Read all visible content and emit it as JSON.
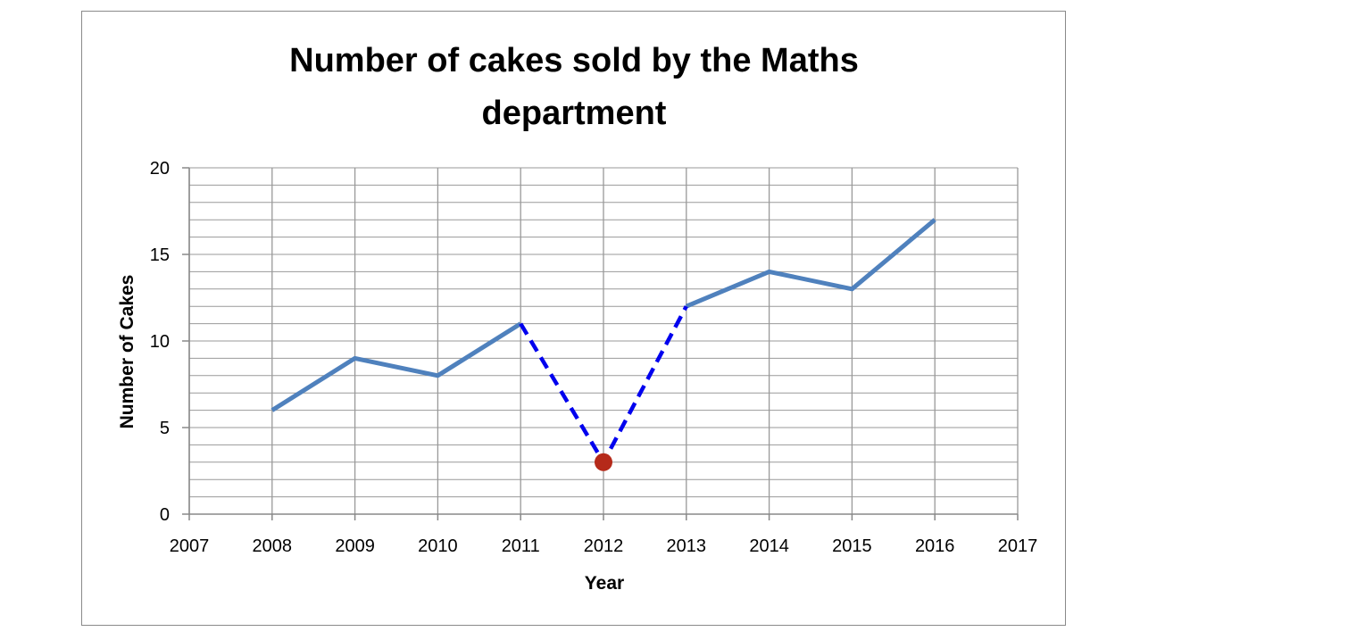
{
  "chart_data": {
    "type": "line",
    "title_lines": [
      "Number of cakes sold by the Maths",
      "department"
    ],
    "xlabel": "Year",
    "ylabel": "Number of Cakes",
    "xlim": [
      2007,
      2017
    ],
    "ylim": [
      0,
      20
    ],
    "x_ticks": [
      "2007",
      "2008",
      "2009",
      "2010",
      "2011",
      "2012",
      "2013",
      "2014",
      "2015",
      "2016",
      "2017"
    ],
    "y_ticks": [
      "0",
      "5",
      "10",
      "15",
      "20"
    ],
    "grid": true,
    "minor_grid_step": 1,
    "series": [
      {
        "color": "#4f81bd",
        "style": "solid",
        "points": [
          [
            2008,
            6
          ],
          [
            2009,
            9
          ],
          [
            2010,
            8
          ],
          [
            2011,
            11
          ]
        ]
      },
      {
        "color": "#4f81bd",
        "style": "solid",
        "points": [
          [
            2013,
            12
          ],
          [
            2014,
            14
          ],
          [
            2015,
            13
          ],
          [
            2016,
            17
          ]
        ]
      },
      {
        "color": "#0000ee",
        "style": "dashed",
        "points": [
          [
            2011,
            11
          ],
          [
            2012,
            3
          ],
          [
            2013,
            12
          ]
        ]
      }
    ],
    "highlight_point": {
      "x": 2012,
      "y": 3,
      "color": "#b52a1a"
    }
  }
}
